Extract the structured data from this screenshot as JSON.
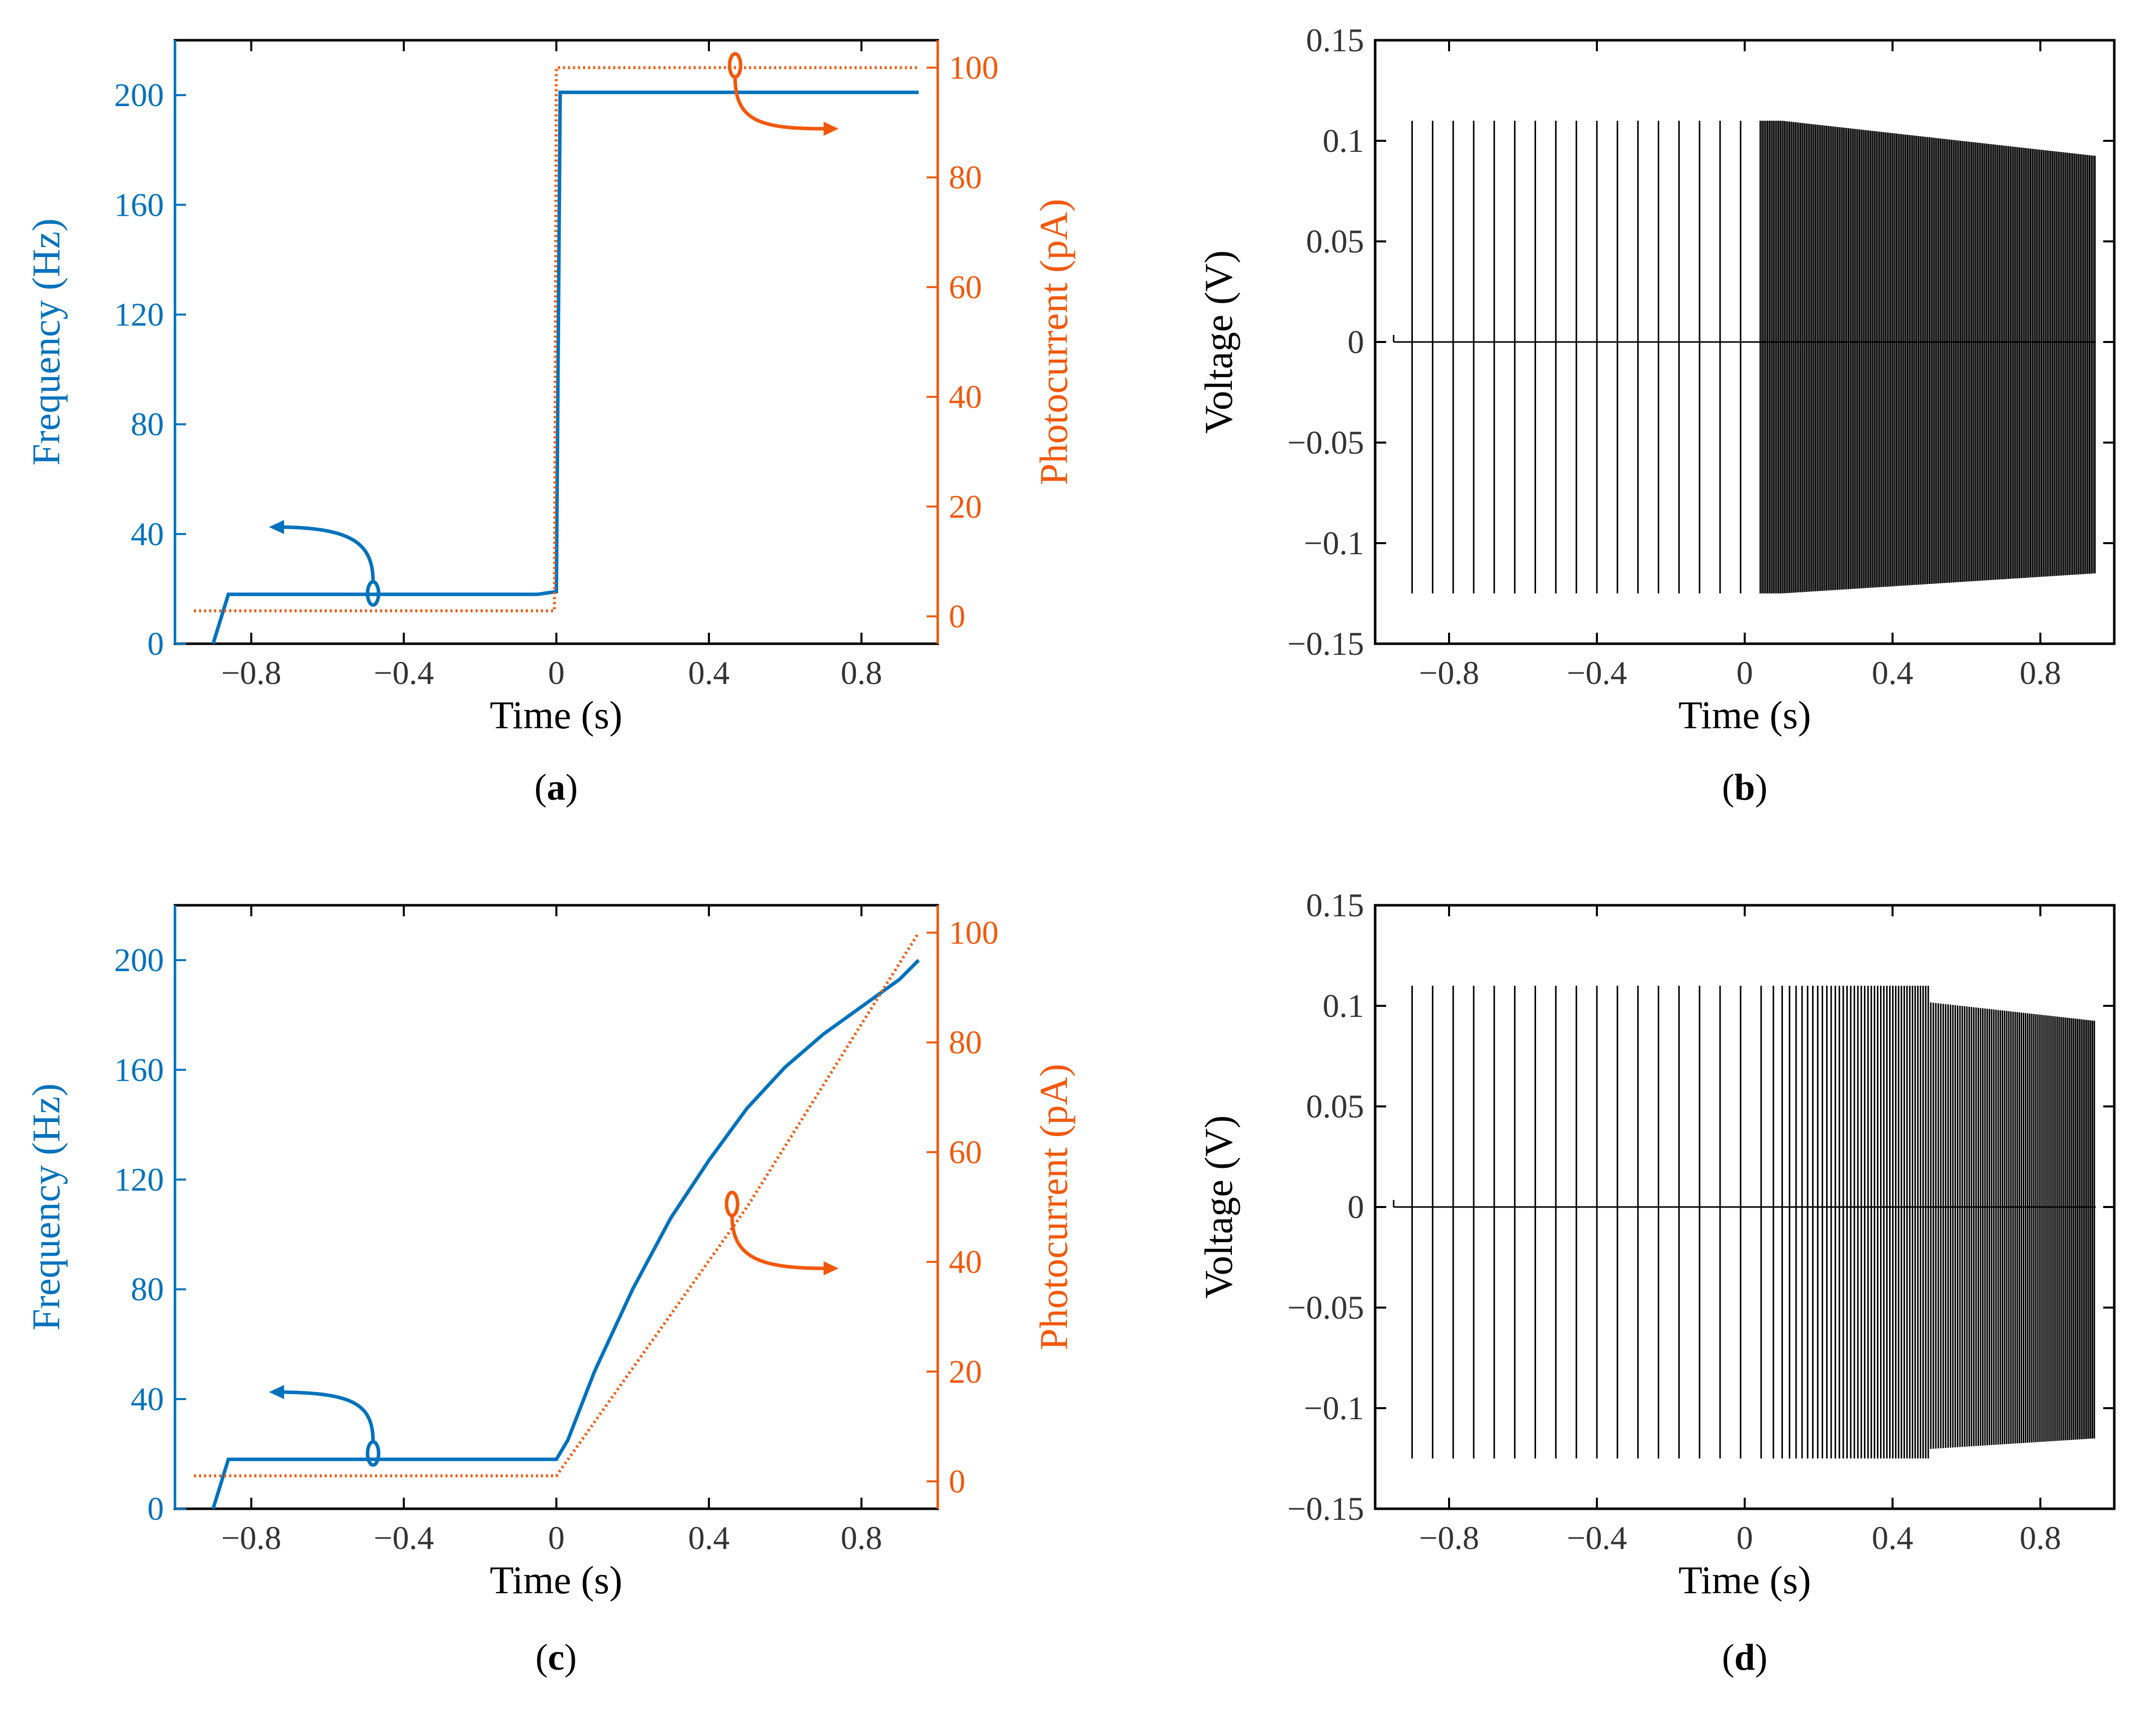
{
  "colors": {
    "frequency": "#0072BD",
    "photocurrent": "#F2590C",
    "voltage": "#000000",
    "axis": "#000000",
    "tick_text": "#333333"
  },
  "panels": {
    "a": {
      "label_open": "(",
      "label_letter": "a",
      "label_close": ")",
      "xlabel": "Time (s)",
      "ylabel_left": "Frequency (Hz)",
      "ylabel_right": "Photocurrent (pA)"
    },
    "b": {
      "label_open": "(",
      "label_letter": "b",
      "label_close": ")",
      "xlabel": "Time (s)",
      "ylabel": "Voltage (V)"
    },
    "c": {
      "label_open": "(",
      "label_letter": "c",
      "label_close": ")",
      "xlabel": "Time (s)",
      "ylabel_left": "Frequency (Hz)",
      "ylabel_right": "Photocurrent (pA)"
    },
    "d": {
      "label_open": "(",
      "label_letter": "d",
      "label_close": ")",
      "xlabel": "Time (s)",
      "ylabel": "Voltage (V)"
    }
  },
  "chart_data": [
    {
      "id": "a",
      "type": "line",
      "title": "",
      "xlabel": "Time (s)",
      "ylabel": "Frequency (Hz)",
      "ylabel_right": "Photocurrent (pA)",
      "xlim": [
        -1.0,
        1.0
      ],
      "ylim": [
        0,
        220
      ],
      "ylim_right": [
        -5,
        105
      ],
      "xticks": [
        -0.8,
        -0.4,
        0,
        0.4,
        0.8
      ],
      "xtick_labels": [
        "−0.8",
        "−0.4",
        "0",
        "0.4",
        "0.8"
      ],
      "yticks": [
        0,
        40,
        80,
        120,
        160,
        200
      ],
      "ytick_labels": [
        "0",
        "40",
        "80",
        "120",
        "160",
        "200"
      ],
      "yticks_right": [
        0,
        20,
        40,
        60,
        80,
        100
      ],
      "ytick_labels_right": [
        "0",
        "20",
        "40",
        "60",
        "80",
        "100"
      ],
      "series": [
        {
          "name": "Frequency",
          "axis": "left",
          "style": "solid",
          "color": "#0072BD",
          "x": [
            -0.9,
            -0.86,
            -0.7,
            -0.4,
            -0.05,
            0.0,
            0.01,
            0.3,
            0.6,
            0.95
          ],
          "y": [
            0,
            18,
            18,
            18,
            18,
            19,
            201,
            201,
            201,
            201
          ]
        },
        {
          "name": "Photocurrent",
          "axis": "right",
          "style": "dotted",
          "color": "#F2590C",
          "x": [
            -0.95,
            -0.5,
            -0.005,
            0.0,
            0.3,
            0.6,
            0.95
          ],
          "y": [
            1,
            1,
            1,
            100,
            100,
            100,
            100
          ]
        }
      ]
    },
    {
      "id": "b",
      "type": "line",
      "title": "",
      "xlabel": "Time (s)",
      "ylabel": "Voltage (V)",
      "xlim": [
        -1.0,
        1.0
      ],
      "ylim": [
        -0.15,
        0.15
      ],
      "xticks": [
        -0.8,
        -0.4,
        0,
        0.4,
        0.8
      ],
      "xtick_labels": [
        "−0.8",
        "−0.4",
        "0",
        "0.4",
        "0.8"
      ],
      "yticks": [
        -0.15,
        -0.1,
        -0.05,
        0,
        0.05,
        0.1,
        0.15
      ],
      "ytick_labels": [
        "−0.15",
        "−0.1",
        "−0.05",
        "0",
        "0.05",
        "0.1",
        "0.15"
      ],
      "spike_peak": 0.11,
      "spike_trough": -0.125,
      "baseline": 0.0,
      "spike_rate_before_hz": 18,
      "spike_rate_after_hz": 201,
      "spike_start": -0.9,
      "end": 0.95
    },
    {
      "id": "c",
      "type": "line",
      "title": "",
      "xlabel": "Time (s)",
      "ylabel": "Frequency (Hz)",
      "ylabel_right": "Photocurrent (pA)",
      "xlim": [
        -1.0,
        1.0
      ],
      "ylim": [
        0,
        220
      ],
      "ylim_right": [
        -5,
        105
      ],
      "xticks": [
        -0.8,
        -0.4,
        0,
        0.4,
        0.8
      ],
      "xtick_labels": [
        "−0.8",
        "−0.4",
        "0",
        "0.4",
        "0.8"
      ],
      "yticks": [
        0,
        40,
        80,
        120,
        160,
        200
      ],
      "ytick_labels": [
        "0",
        "40",
        "80",
        "120",
        "160",
        "200"
      ],
      "yticks_right": [
        0,
        20,
        40,
        60,
        80,
        100
      ],
      "ytick_labels_right": [
        "0",
        "20",
        "40",
        "60",
        "80",
        "100"
      ],
      "series": [
        {
          "name": "Frequency",
          "axis": "left",
          "style": "solid",
          "color": "#0072BD",
          "x": [
            -0.9,
            -0.86,
            -0.5,
            0.0,
            0.03,
            0.1,
            0.2,
            0.3,
            0.4,
            0.5,
            0.6,
            0.7,
            0.8,
            0.9,
            0.95
          ],
          "y": [
            0,
            18,
            18,
            18,
            25,
            50,
            80,
            106,
            127,
            146,
            161,
            173,
            183,
            193,
            200
          ]
        },
        {
          "name": "Photocurrent",
          "axis": "right",
          "style": "dotted",
          "color": "#F2590C",
          "x": [
            -0.95,
            -0.5,
            0.0,
            0.5,
            0.95
          ],
          "y": [
            1,
            1,
            1,
            50,
            100
          ]
        }
      ]
    },
    {
      "id": "d",
      "type": "line",
      "title": "",
      "xlabel": "Time (s)",
      "ylabel": "Voltage (V)",
      "xlim": [
        -1.0,
        1.0
      ],
      "ylim": [
        -0.15,
        0.15
      ],
      "xticks": [
        -0.8,
        -0.4,
        0,
        0.4,
        0.8
      ],
      "xtick_labels": [
        "−0.8",
        "−0.4",
        "0",
        "0.4",
        "0.8"
      ],
      "yticks": [
        -0.15,
        -0.1,
        -0.05,
        0,
        0.05,
        0.1,
        0.15
      ],
      "ytick_labels": [
        "−0.15",
        "−0.1",
        "−0.05",
        "0",
        "0.05",
        "0.1",
        "0.15"
      ],
      "spike_peak": 0.11,
      "spike_trough": -0.125,
      "baseline": 0.0,
      "spike_rate_before_hz": 18,
      "spike_rate_after": "increasing with frequency trace of (c)",
      "spike_start": -0.9,
      "end": 0.95
    }
  ]
}
